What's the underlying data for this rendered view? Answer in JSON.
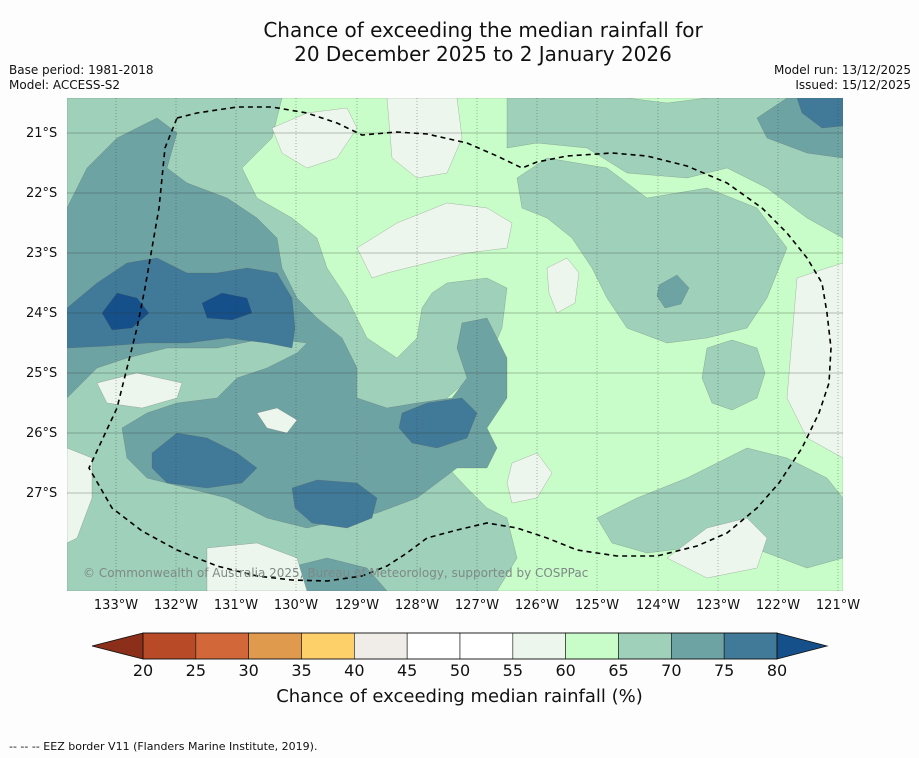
{
  "title": {
    "line1": "Chance of exceeding the median rainfall for",
    "line2": "20 December 2025 to 2 January 2026"
  },
  "meta_left": {
    "base_period": "Base period: 1981-2018",
    "model": "Model: ACCESS-S2"
  },
  "meta_right": {
    "model_run": "Model run: 13/12/2025",
    "issued": "Issued: 15/12/2025"
  },
  "map": {
    "lat_labels": [
      "21°S",
      "22°S",
      "23°S",
      "24°S",
      "25°S",
      "26°S",
      "27°S"
    ],
    "lon_labels": [
      "133°W",
      "132°W",
      "131°W",
      "130°W",
      "129°W",
      "128°W",
      "127°W",
      "126°W",
      "125°W",
      "124°W",
      "123°W",
      "122°W",
      "121°W"
    ],
    "copyright": "© Commonwealth of Australia 2025, Bureau of Meteorology, supported by COSPPac",
    "colors": {
      "c50_55": "#ffffff",
      "c55_60": "#ecf6ec",
      "c60_65": "#c8fcc8",
      "c65_70": "#9ed0ba",
      "c70_75": "#6ea3a3",
      "c75_80": "#417a98",
      "c80": "#15508a"
    }
  },
  "colorbar": {
    "ticks": [
      "20",
      "25",
      "30",
      "35",
      "40",
      "45",
      "50",
      "55",
      "60",
      "65",
      "70",
      "75",
      "80"
    ],
    "segments": [
      "#b94a28",
      "#d2683a",
      "#e09a4d",
      "#fdd06a",
      "#f0ede8",
      "#ffffff",
      "#ffffff",
      "#ecf6ec",
      "#c8fcc8",
      "#9ed0ba",
      "#6ea3a3",
      "#417a98"
    ],
    "low_extend_color": "#8c2f1a",
    "high_extend_color": "#15508a",
    "label": "Chance of exceeding median rainfall (%)"
  },
  "footer": "--  --  -- EEZ border V11 (Flanders Marine Institute, 2019)."
}
